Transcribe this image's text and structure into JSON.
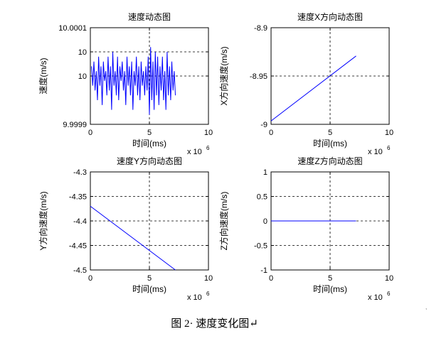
{
  "chart_data": [
    {
      "type": "line",
      "title": "速度动态图",
      "xlabel": "时间(ms)",
      "ylabel": "速度(m/s)",
      "x_exponent_label": "x 10",
      "x_exponent": "6",
      "xlim": [
        0,
        10
      ],
      "xticks": [
        0,
        5,
        10
      ],
      "xtick_labels": [
        "0",
        "5",
        "10"
      ],
      "ylim": [
        9.9999,
        10.0001
      ],
      "yticks": [
        9.9999,
        10.0,
        10.00005,
        10.0001
      ],
      "ytick_labels": [
        "9.9999",
        "10",
        "10",
        "10.0001"
      ],
      "grid": true,
      "line_color": "#0000ff",
      "series": [
        {
          "x": [
            0.1,
            0.2,
            0.3,
            0.4,
            0.5,
            0.6,
            0.7,
            0.8,
            0.9,
            1.0,
            1.1,
            1.2,
            1.3,
            1.4,
            1.5,
            1.6,
            1.7,
            1.8,
            1.9,
            2.0,
            2.1,
            2.2,
            2.3,
            2.4,
            2.5,
            2.6,
            2.7,
            2.8,
            2.9,
            3.0,
            3.1,
            3.2,
            3.3,
            3.4,
            3.5,
            3.6,
            3.7,
            3.8,
            3.9,
            4.0,
            4.1,
            4.2,
            4.3,
            4.4,
            4.5,
            4.6,
            4.7,
            4.8,
            4.9,
            5.0,
            5.1,
            5.2,
            5.3,
            5.4,
            5.5,
            5.6,
            5.7,
            5.8,
            5.9,
            6.0,
            6.1,
            6.2,
            6.3,
            6.4,
            6.5,
            6.6,
            6.7,
            6.8,
            6.9,
            7.0,
            7.1,
            7.2
          ],
          "y": [
            10.00002,
            9.99998,
            10.00003,
            9.99997,
            10.00001,
            9.99995,
            10.00004,
            9.99998,
            10.00002,
            9.99994,
            10.00003,
            9.99999,
            10.00001,
            9.99996,
            10.00004,
            9.99997,
            10.00002,
            9.99993,
            10.00005,
            9.99998,
            10.00001,
            9.99996,
            10.00004,
            9.99995,
            10.00002,
            9.99999,
            10.00003,
            9.99997,
            10.00001,
            9.99994,
            10.00004,
            9.99998,
            10.00002,
            9.99996,
            10.00003,
            9.99993,
            10.00001,
            9.99998,
            10.00004,
            9.99996,
            10.00002,
            9.99995,
            10.00003,
            9.99998,
            10.00001,
            9.99996,
            10.00002,
            9.99997,
            10.00004,
            9.99992,
            10.00006,
            9.99995,
            10.00003,
            9.99993,
            10.00005,
            9.99996,
            10.00004,
            9.99994,
            10.00002,
            9.99997,
            10.00004,
            9.99995,
            10.00001,
            9.99993,
            10.00005,
            9.99996,
            10.00002,
            9.99995,
            10.00003,
            9.99997,
            10.00001,
            9.99996
          ]
        }
      ]
    },
    {
      "type": "line",
      "title": "速度X方向动态图",
      "xlabel": "时间(ms)",
      "ylabel": "X方向速度(m/s)",
      "x_exponent_label": "x 10",
      "x_exponent": "6",
      "xlim": [
        0,
        10
      ],
      "xticks": [
        0,
        5,
        10
      ],
      "xtick_labels": [
        "0",
        "5",
        "10"
      ],
      "ylim": [
        -9.0,
        -8.9
      ],
      "yticks": [
        -9.0,
        -8.95,
        -8.9
      ],
      "ytick_labels": [
        "-9",
        "-8.95",
        "-8.9"
      ],
      "grid": true,
      "line_color": "#0000ff",
      "series": [
        {
          "x": [
            0,
            7.2
          ],
          "y": [
            -8.9965,
            -8.9293
          ]
        }
      ]
    },
    {
      "type": "line",
      "title": "速度Y方向动态图",
      "xlabel": "时间(ms)",
      "ylabel": "Y方向速度(m/s)",
      "x_exponent_label": "x 10",
      "x_exponent": "6",
      "xlim": [
        0,
        10
      ],
      "xticks": [
        0,
        5,
        10
      ],
      "xtick_labels": [
        "0",
        "5",
        "10"
      ],
      "ylim": [
        -4.5,
        -4.3
      ],
      "yticks": [
        -4.5,
        -4.45,
        -4.4,
        -4.35,
        -4.3
      ],
      "ytick_labels": [
        "-4.5",
        "-4.45",
        "-4.4",
        "-4.35",
        "-4.3"
      ],
      "grid": true,
      "line_color": "#0000ff",
      "series": [
        {
          "x": [
            0,
            7.2
          ],
          "y": [
            -4.37,
            -4.5
          ]
        }
      ]
    },
    {
      "type": "line",
      "title": "速度Z方向动态图",
      "xlabel": "时间(ms)",
      "ylabel": "Z方向速度(m/s)",
      "x_exponent_label": "x 10",
      "x_exponent": "6",
      "xlim": [
        0,
        10
      ],
      "xticks": [
        0,
        5,
        10
      ],
      "xtick_labels": [
        "0",
        "5",
        "10"
      ],
      "ylim": [
        -1,
        1
      ],
      "yticks": [
        -1,
        -0.5,
        0,
        0.5,
        1
      ],
      "ytick_labels": [
        "-1",
        "-0.5",
        "0",
        "0.5",
        "1"
      ],
      "grid": true,
      "line_color": "#0000ff",
      "series": [
        {
          "x": [
            0,
            7.2
          ],
          "y": [
            0,
            0
          ]
        }
      ]
    }
  ],
  "caption": "图 2· 速度变化图↵"
}
